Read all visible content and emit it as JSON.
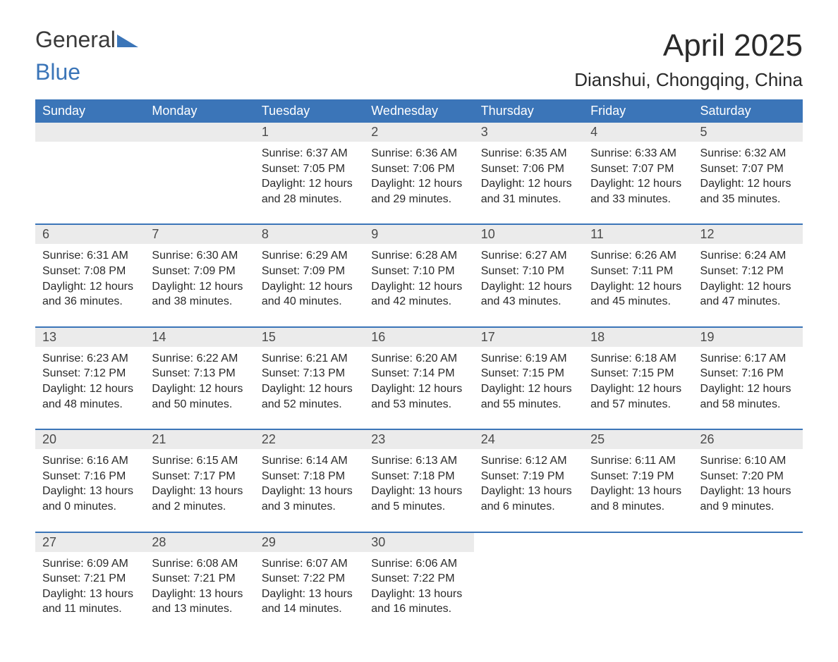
{
  "logo": {
    "text1": "General",
    "text2": "Blue",
    "color1": "#3a3a3a",
    "color2": "#3b75b8",
    "triangle_color": "#3b75b8"
  },
  "title": "April 2025",
  "location": "Dianshui, Chongqing, China",
  "header_bg": "#3b75b8",
  "header_text_color": "#ffffff",
  "daynum_bg": "#ebebeb",
  "border_color": "#3b75b8",
  "text_color": "#2a2a2a",
  "columns": [
    "Sunday",
    "Monday",
    "Tuesday",
    "Wednesday",
    "Thursday",
    "Friday",
    "Saturday"
  ],
  "weeks": [
    [
      null,
      null,
      {
        "num": "1",
        "sunrise": "6:37 AM",
        "sunset": "7:05 PM",
        "daylight": "12 hours and 28 minutes."
      },
      {
        "num": "2",
        "sunrise": "6:36 AM",
        "sunset": "7:06 PM",
        "daylight": "12 hours and 29 minutes."
      },
      {
        "num": "3",
        "sunrise": "6:35 AM",
        "sunset": "7:06 PM",
        "daylight": "12 hours and 31 minutes."
      },
      {
        "num": "4",
        "sunrise": "6:33 AM",
        "sunset": "7:07 PM",
        "daylight": "12 hours and 33 minutes."
      },
      {
        "num": "5",
        "sunrise": "6:32 AM",
        "sunset": "7:07 PM",
        "daylight": "12 hours and 35 minutes."
      }
    ],
    [
      {
        "num": "6",
        "sunrise": "6:31 AM",
        "sunset": "7:08 PM",
        "daylight": "12 hours and 36 minutes."
      },
      {
        "num": "7",
        "sunrise": "6:30 AM",
        "sunset": "7:09 PM",
        "daylight": "12 hours and 38 minutes."
      },
      {
        "num": "8",
        "sunrise": "6:29 AM",
        "sunset": "7:09 PM",
        "daylight": "12 hours and 40 minutes."
      },
      {
        "num": "9",
        "sunrise": "6:28 AM",
        "sunset": "7:10 PM",
        "daylight": "12 hours and 42 minutes."
      },
      {
        "num": "10",
        "sunrise": "6:27 AM",
        "sunset": "7:10 PM",
        "daylight": "12 hours and 43 minutes."
      },
      {
        "num": "11",
        "sunrise": "6:26 AM",
        "sunset": "7:11 PM",
        "daylight": "12 hours and 45 minutes."
      },
      {
        "num": "12",
        "sunrise": "6:24 AM",
        "sunset": "7:12 PM",
        "daylight": "12 hours and 47 minutes."
      }
    ],
    [
      {
        "num": "13",
        "sunrise": "6:23 AM",
        "sunset": "7:12 PM",
        "daylight": "12 hours and 48 minutes."
      },
      {
        "num": "14",
        "sunrise": "6:22 AM",
        "sunset": "7:13 PM",
        "daylight": "12 hours and 50 minutes."
      },
      {
        "num": "15",
        "sunrise": "6:21 AM",
        "sunset": "7:13 PM",
        "daylight": "12 hours and 52 minutes."
      },
      {
        "num": "16",
        "sunrise": "6:20 AM",
        "sunset": "7:14 PM",
        "daylight": "12 hours and 53 minutes."
      },
      {
        "num": "17",
        "sunrise": "6:19 AM",
        "sunset": "7:15 PM",
        "daylight": "12 hours and 55 minutes."
      },
      {
        "num": "18",
        "sunrise": "6:18 AM",
        "sunset": "7:15 PM",
        "daylight": "12 hours and 57 minutes."
      },
      {
        "num": "19",
        "sunrise": "6:17 AM",
        "sunset": "7:16 PM",
        "daylight": "12 hours and 58 minutes."
      }
    ],
    [
      {
        "num": "20",
        "sunrise": "6:16 AM",
        "sunset": "7:16 PM",
        "daylight": "13 hours and 0 minutes."
      },
      {
        "num": "21",
        "sunrise": "6:15 AM",
        "sunset": "7:17 PM",
        "daylight": "13 hours and 2 minutes."
      },
      {
        "num": "22",
        "sunrise": "6:14 AM",
        "sunset": "7:18 PM",
        "daylight": "13 hours and 3 minutes."
      },
      {
        "num": "23",
        "sunrise": "6:13 AM",
        "sunset": "7:18 PM",
        "daylight": "13 hours and 5 minutes."
      },
      {
        "num": "24",
        "sunrise": "6:12 AM",
        "sunset": "7:19 PM",
        "daylight": "13 hours and 6 minutes."
      },
      {
        "num": "25",
        "sunrise": "6:11 AM",
        "sunset": "7:19 PM",
        "daylight": "13 hours and 8 minutes."
      },
      {
        "num": "26",
        "sunrise": "6:10 AM",
        "sunset": "7:20 PM",
        "daylight": "13 hours and 9 minutes."
      }
    ],
    [
      {
        "num": "27",
        "sunrise": "6:09 AM",
        "sunset": "7:21 PM",
        "daylight": "13 hours and 11 minutes."
      },
      {
        "num": "28",
        "sunrise": "6:08 AM",
        "sunset": "7:21 PM",
        "daylight": "13 hours and 13 minutes."
      },
      {
        "num": "29",
        "sunrise": "6:07 AM",
        "sunset": "7:22 PM",
        "daylight": "13 hours and 14 minutes."
      },
      {
        "num": "30",
        "sunrise": "6:06 AM",
        "sunset": "7:22 PM",
        "daylight": "13 hours and 16 minutes."
      },
      null,
      null,
      null
    ]
  ],
  "labels": {
    "sunrise": "Sunrise:",
    "sunset": "Sunset:",
    "daylight": "Daylight:"
  }
}
